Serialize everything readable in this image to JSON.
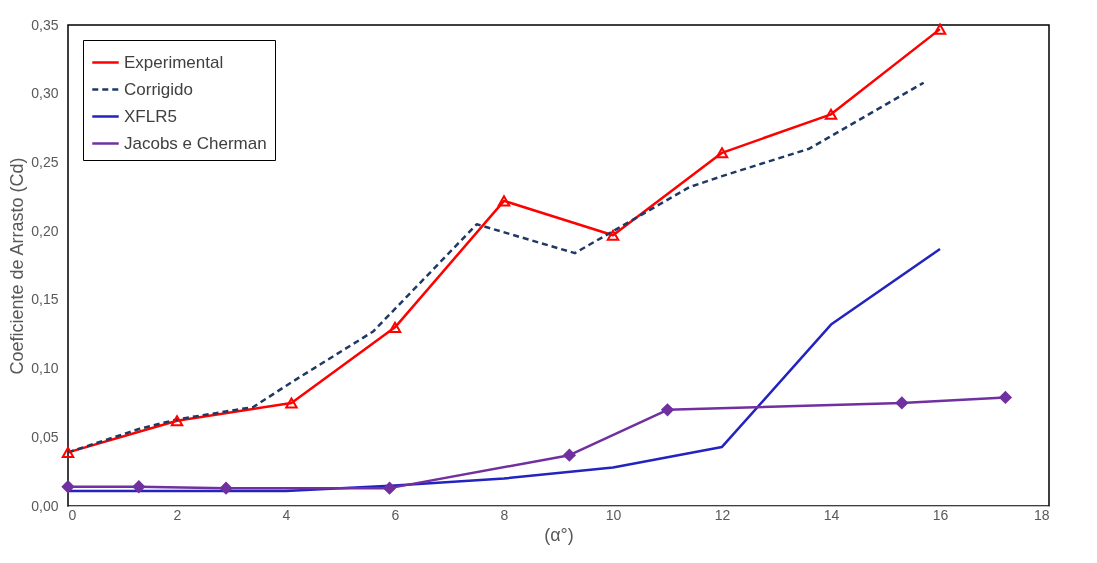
{
  "chart_data": {
    "type": "line",
    "xlabel": "(α°)",
    "ylabel": "Coeficiente de Arrasto (Cd)",
    "xlim": [
      0,
      18
    ],
    "xticks": [
      0,
      2,
      4,
      6,
      8,
      10,
      12,
      14,
      16,
      18
    ],
    "ylim": [
      0,
      0.35
    ],
    "yticks": [
      {
        "value": 0,
        "label": "0,00"
      },
      {
        "value": 0.05,
        "label": "0,05"
      },
      {
        "value": 0.1,
        "label": "0,10"
      },
      {
        "value": 0.15,
        "label": "0,15"
      },
      {
        "value": 0.2,
        "label": "0,20"
      },
      {
        "value": 0.25,
        "label": "0,25"
      },
      {
        "value": 0.3,
        "label": "0,30"
      },
      {
        "value": 0.35,
        "label": "0,35"
      }
    ],
    "grid": false,
    "legend": "top left",
    "series": [
      {
        "name": "Experimental",
        "color": "#ff0000",
        "marker": "triangle",
        "line_style": "solid",
        "x": [
          0,
          2,
          4.1,
          6,
          8,
          10,
          12,
          14,
          16
        ],
        "values": [
          0.039,
          0.062,
          0.075,
          0.13,
          0.222,
          0.197,
          0.257,
          0.285,
          0.347
        ]
      },
      {
        "name": "Corrigido",
        "color": "#1f3864",
        "marker": "none",
        "line_style": "dashed",
        "x": [
          0,
          1.3,
          2,
          3.4,
          4.1,
          5.6,
          7.5,
          9.3,
          10,
          11.4,
          12,
          13.6,
          15.7
        ],
        "values": [
          0.039,
          0.056,
          0.063,
          0.072,
          0.09,
          0.127,
          0.205,
          0.184,
          0.2,
          0.232,
          0.24,
          0.26,
          0.308
        ]
      },
      {
        "name": "XFLR5",
        "color": "#2323c0",
        "marker": "none",
        "line_style": "solid",
        "x": [
          0,
          2,
          4,
          6,
          8,
          10,
          12,
          14,
          16
        ],
        "values": [
          0.011,
          0.011,
          0.011,
          0.015,
          0.02,
          0.028,
          0.043,
          0.132,
          0.187
        ]
      },
      {
        "name": "Jacobs e Cherman",
        "color": "#7030a0",
        "marker": "diamond",
        "line_style": "solid",
        "x": [
          0,
          1.3,
          2.9,
          5.9,
          9.2,
          11,
          15.3,
          17.2
        ],
        "values": [
          0.014,
          0.014,
          0.013,
          0.013,
          0.037,
          0.07,
          0.075,
          0.079
        ]
      }
    ]
  }
}
